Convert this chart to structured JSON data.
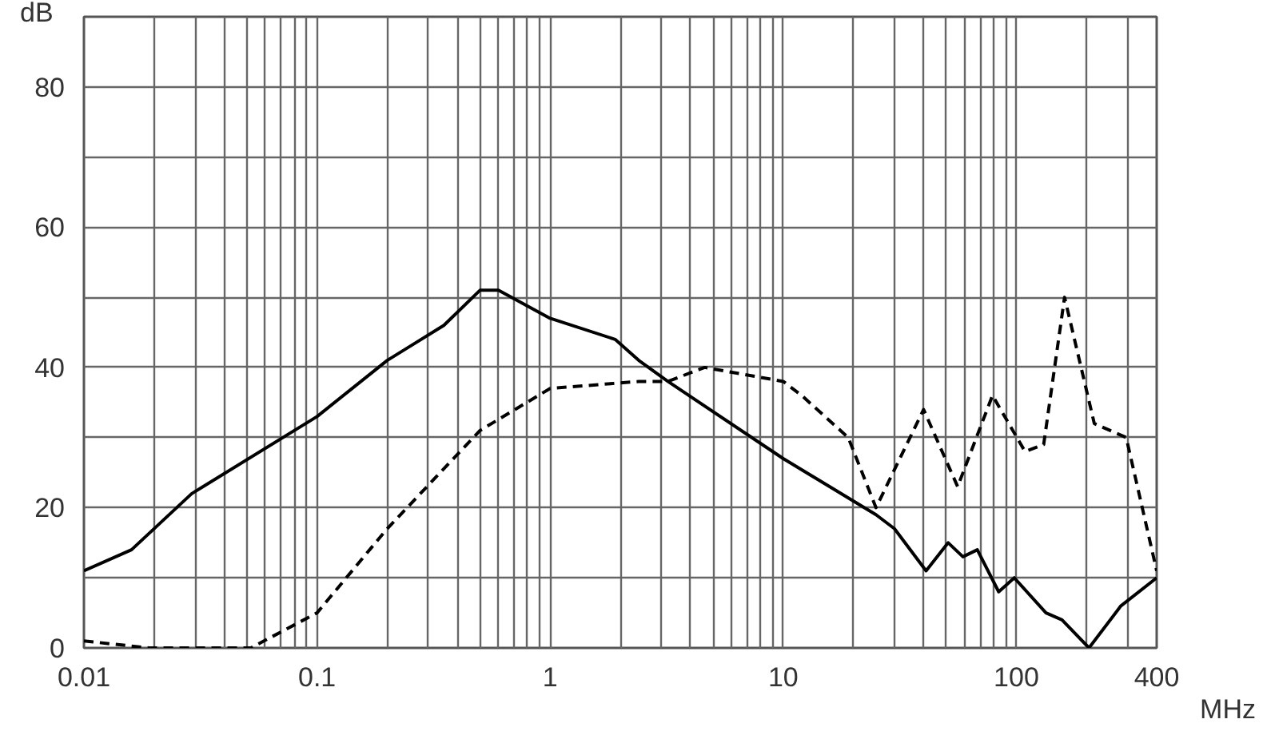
{
  "chart_data": {
    "type": "line",
    "xlabel": "MHz",
    "ylabel": "dB",
    "log": "x",
    "grid": true,
    "marker": "none",
    "xlim": [
      0.01,
      400
    ],
    "ylim": [
      0,
      90
    ],
    "xticks": [
      0.01,
      {
        "value": 0.02,
        "label": null
      },
      {
        "value": 0.03,
        "label": null
      },
      {
        "value": 0.04,
        "label": null
      },
      {
        "value": 0.05,
        "label": null
      },
      {
        "value": 0.06,
        "label": null
      },
      {
        "value": 0.07,
        "label": null
      },
      {
        "value": 0.08,
        "label": null
      },
      {
        "value": 0.09,
        "label": null
      },
      0.1,
      {
        "value": 0.2,
        "label": null
      },
      {
        "value": 0.3,
        "label": null
      },
      {
        "value": 0.4,
        "label": null
      },
      {
        "value": 0.5,
        "label": null
      },
      {
        "value": 0.6,
        "label": null
      },
      {
        "value": 0.7,
        "label": null
      },
      {
        "value": 0.8,
        "label": null
      },
      {
        "value": 0.9,
        "label": null
      },
      1,
      {
        "value": 2,
        "label": null
      },
      {
        "value": 3,
        "label": null
      },
      {
        "value": 4,
        "label": null
      },
      {
        "value": 5,
        "label": null
      },
      {
        "value": 6,
        "label": null
      },
      {
        "value": 7,
        "label": null
      },
      {
        "value": 8,
        "label": null
      },
      {
        "value": 9,
        "label": null
      },
      10,
      {
        "value": 20,
        "label": null
      },
      {
        "value": 30,
        "label": null
      },
      {
        "value": 40,
        "label": null
      },
      {
        "value": 50,
        "label": null
      },
      {
        "value": 60,
        "label": null
      },
      {
        "value": 70,
        "label": null
      },
      {
        "value": 80,
        "label": null
      },
      {
        "value": 90,
        "label": null
      },
      100,
      {
        "value": 200,
        "label": null
      },
      {
        "value": 300,
        "label": null
      },
      400
    ],
    "yticks": [
      0,
      {
        "value": 10,
        "label": null
      },
      20,
      {
        "value": 30,
        "label": null
      },
      40,
      {
        "value": 50,
        "label": null
      },
      60,
      {
        "value": 70,
        "label": null
      },
      80
    ],
    "series": [
      {
        "color": "#000000",
        "line_style": "solid",
        "x": [
          0.01,
          0.016,
          0.029,
          0.1,
          0.2,
          0.35,
          0.5,
          0.6,
          1,
          1.9,
          2.4,
          3.2,
          10,
          25,
          30,
          41,
          51,
          59,
          68,
          84,
          98,
          134,
          157,
          205,
          281,
          400
        ],
        "values": [
          11,
          14,
          22,
          33,
          41,
          46,
          51,
          51,
          47,
          44,
          41,
          38,
          27,
          19,
          17,
          11,
          15,
          13,
          14,
          8,
          10,
          5,
          4,
          0,
          6,
          10
        ]
      },
      {
        "color": "#000000",
        "line_style": "dashed",
        "x": [
          0.01,
          0.019,
          0.052,
          0.1,
          0.2,
          0.5,
          1,
          2.4,
          3.2,
          4.6,
          10,
          12,
          19,
          25,
          40,
          56,
          79,
          109,
          131,
          161,
          216,
          296,
          400
        ],
        "values": [
          1,
          0,
          0,
          5,
          17,
          31,
          37,
          38,
          38,
          40,
          38,
          36,
          30,
          20,
          34,
          23,
          36,
          28,
          29,
          50,
          32,
          30,
          11
        ]
      }
    ]
  }
}
